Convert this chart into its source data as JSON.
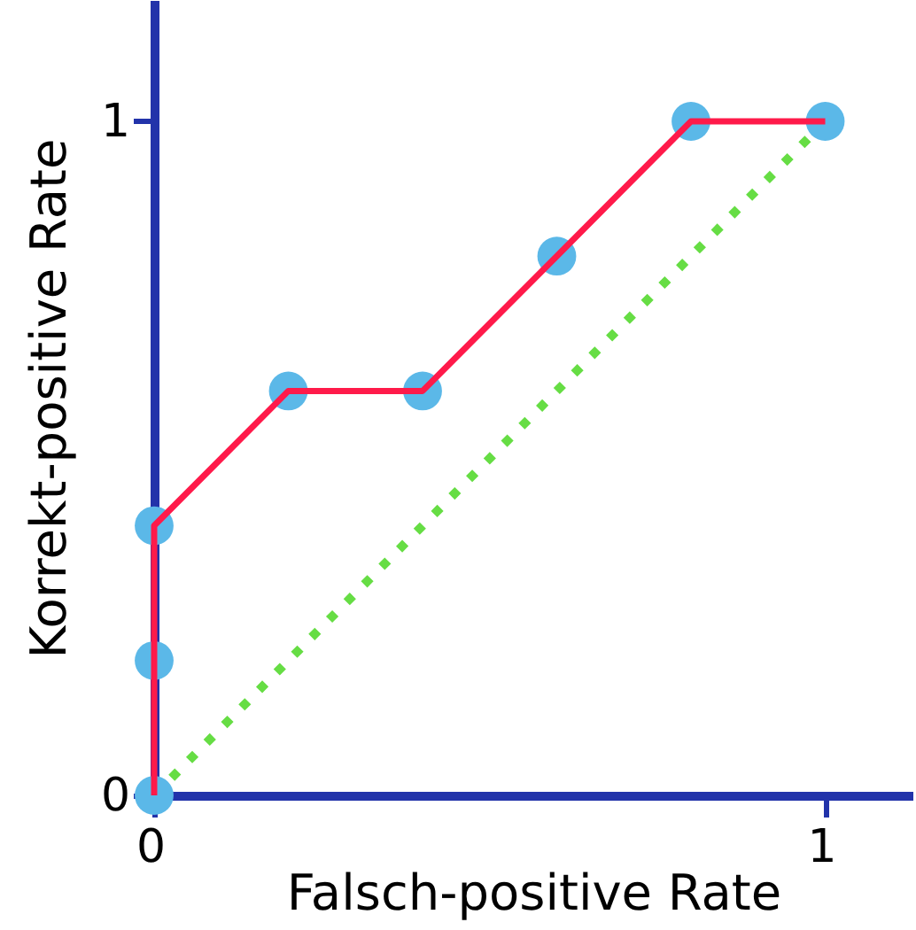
{
  "chart_data": {
    "type": "line",
    "xlabel": "Falsch-positive Rate",
    "ylabel": "Korrekt-positive Rate",
    "xlim": [
      0,
      1.13
    ],
    "ylim": [
      0,
      1.18
    ],
    "xticks": [
      0,
      1
    ],
    "yticks": [
      0,
      1
    ],
    "grid": false,
    "legend": false,
    "series": [
      {
        "color": "#66dd44",
        "line_style": "dotted",
        "marker": "none",
        "x": [
          0,
          1
        ],
        "values": [
          0,
          1
        ]
      },
      {
        "type": "scatter",
        "color": "#5bb8e8",
        "marker": "circle",
        "x": [
          0,
          0,
          0,
          0.2,
          0.4,
          0.6,
          0.8,
          1
        ],
        "values": [
          0,
          0.2,
          0.4,
          0.6,
          0.6,
          0.8,
          1,
          1
        ]
      },
      {
        "color": "#ff1a4a",
        "line_style": "solid",
        "marker": "none",
        "x": [
          0,
          0,
          0.2,
          0.4,
          0.6,
          0.8,
          1
        ],
        "values": [
          0,
          0.4,
          0.6,
          0.6,
          0.8,
          1,
          1
        ]
      }
    ]
  }
}
